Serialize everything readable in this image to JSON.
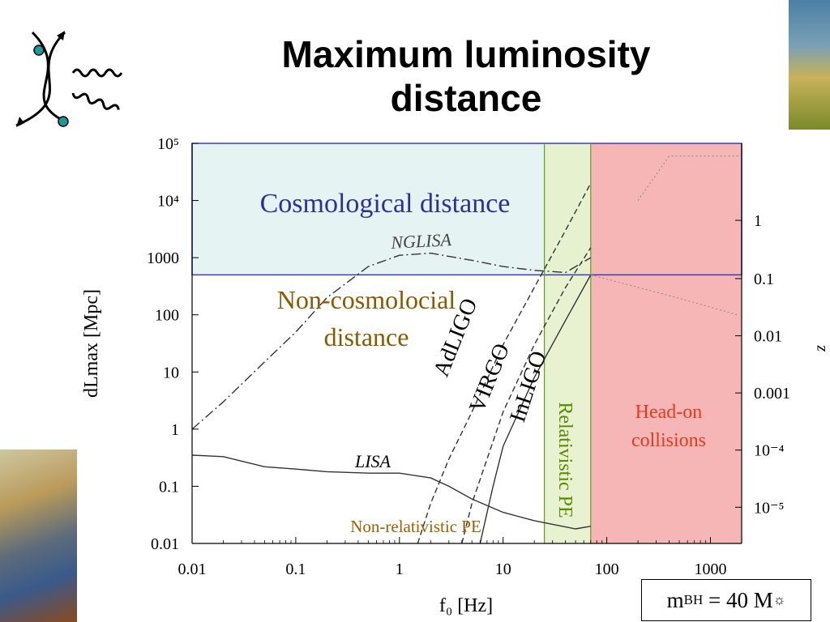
{
  "slide": {
    "title_line1": "Maximum luminosity",
    "title_line2": "distance",
    "mass_label": {
      "prefix": "m",
      "sub": "BH",
      "middle": " = 40 M",
      "sun_sub": "☼"
    }
  },
  "colors": {
    "cosmological_fill": "#e6f3f3",
    "cosmological_border": "#3a3fb0",
    "cosmological_text": "#2e3192",
    "noncosmo_text": "#8a5a00",
    "relativistic_fill": "#e4f0c8",
    "relativistic_text": "#5a8a00",
    "headon_fill": "#f7b2b2",
    "headon_text": "#e23b1e",
    "nonrel_text": "#a06000"
  },
  "chart_data": {
    "type": "line",
    "x_scale": "log",
    "y_scale": "log",
    "xlabel": "f₀ [Hz]",
    "ylabel": "dLmax [Mpc]",
    "ylabel_right": "z",
    "xlim": [
      0.01,
      2000
    ],
    "ylim": [
      0.01,
      100000
    ],
    "x_ticks": [
      0.01,
      0.1,
      1,
      10,
      100,
      1000
    ],
    "x_tick_labels": [
      "0.01",
      "0.1",
      "1",
      "10",
      "100",
      "1000"
    ],
    "y_ticks": [
      0.01,
      0.1,
      1,
      10,
      100,
      1000,
      10000,
      100000
    ],
    "y_tick_labels": [
      "0.01",
      "0.1",
      "1",
      "10",
      "100",
      "1000",
      "10⁴",
      "10⁵"
    ],
    "right_ticks": [
      {
        "label": "1",
        "y": 4500
      },
      {
        "label": "0.1",
        "y": 430
      },
      {
        "label": "0.01",
        "y": 43
      },
      {
        "label": "0.001",
        "y": 4.3
      },
      {
        "label": "10⁻⁴",
        "y": 0.43
      },
      {
        "label": "10⁻⁵",
        "y": 0.043
      }
    ],
    "regions": [
      {
        "name": "Cosmological distance",
        "x": [
          0.01,
          2000
        ],
        "y": [
          500,
          100000
        ]
      },
      {
        "name": "Relativistic PE",
        "x": [
          25,
          70
        ]
      },
      {
        "name": "Head-on collisions",
        "x": [
          70,
          2000
        ]
      }
    ],
    "series": [
      {
        "name": "LISA",
        "style": "solid",
        "x": [
          0.01,
          0.02,
          0.05,
          0.1,
          0.2,
          0.5,
          1,
          2,
          3,
          5,
          10,
          20,
          50,
          70
        ],
        "y": [
          0.35,
          0.33,
          0.22,
          0.2,
          0.18,
          0.17,
          0.17,
          0.14,
          0.1,
          0.06,
          0.035,
          0.025,
          0.018,
          0.02
        ]
      },
      {
        "name": "NGLISA",
        "style": "dashdot",
        "x": [
          0.01,
          0.02,
          0.05,
          0.1,
          0.2,
          0.5,
          1,
          2,
          5,
          10,
          20,
          40,
          70
        ],
        "y": [
          1,
          3,
          15,
          50,
          200,
          700,
          1100,
          1200,
          900,
          700,
          600,
          550,
          1000
        ]
      },
      {
        "name": "AdLIGO",
        "style": "dashed",
        "x": [
          1.5,
          2,
          3,
          5,
          10,
          20,
          40,
          70
        ],
        "y": [
          0.01,
          0.05,
          0.3,
          2,
          30,
          300,
          3000,
          20000
        ]
      },
      {
        "name": "VIRGO",
        "style": "dashed",
        "x": [
          4,
          5,
          10,
          20,
          40,
          70
        ],
        "y": [
          0.01,
          0.05,
          2,
          30,
          300,
          1500
        ]
      },
      {
        "name": "InLIGO",
        "style": "solid",
        "x": [
          6,
          8,
          10,
          20,
          40,
          70
        ],
        "y": [
          0.01,
          0.1,
          0.5,
          8,
          80,
          500
        ]
      }
    ],
    "annotations": [
      {
        "text": "Cosmological distance",
        "role": "region"
      },
      {
        "text": "Non-cosmolocial",
        "role": "region"
      },
      {
        "text": "distance",
        "role": "region"
      },
      {
        "text": "NGLISA",
        "role": "curve"
      },
      {
        "text": "AdLIGO",
        "role": "curve"
      },
      {
        "text": "VIRGO",
        "role": "curve"
      },
      {
        "text": "InLIGO",
        "role": "curve"
      },
      {
        "text": "LISA",
        "role": "curve"
      },
      {
        "text": "Relativistic PE",
        "role": "region"
      },
      {
        "text": "Head-on",
        "role": "region"
      },
      {
        "text": "collisions",
        "role": "region"
      },
      {
        "text": "Non-relativistic PE",
        "role": "region"
      }
    ]
  }
}
